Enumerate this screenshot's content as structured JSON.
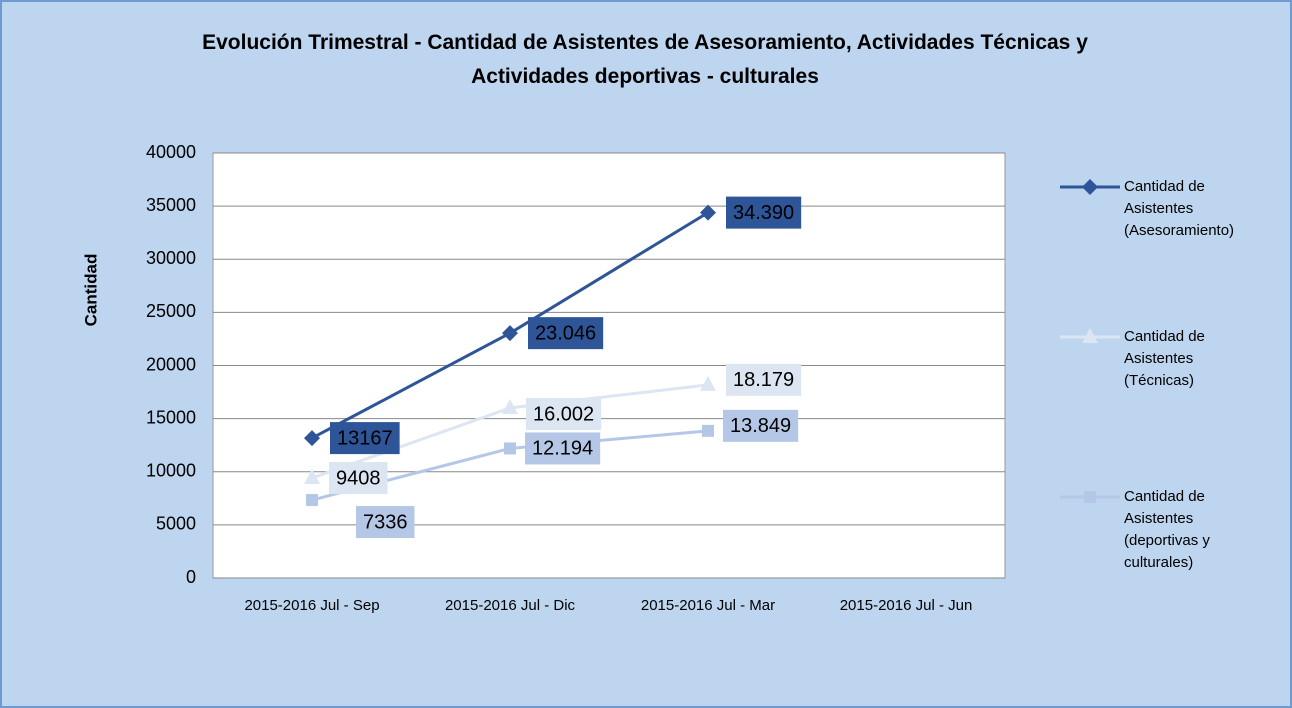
{
  "chart_data": {
    "type": "line",
    "title": "Evolución Trimestral -  Cantidad de Asistentes de Asesoramiento, Actividades Técnicas y Actividades deportivas - culturales",
    "y_label": "Cantidad",
    "categories": [
      "2015-2016 Jul - Sep",
      "2015-2016 Jul - Dic",
      "2015-2016 Jul - Mar",
      "2015-2016 Jul - Jun"
    ],
    "series": [
      {
        "name": "Cantidad de Asistentes (Asesoramiento)",
        "color": "#2e5597",
        "marker": "diamond",
        "values": [
          13167,
          23046,
          34390,
          null
        ],
        "value_labels": [
          "13167",
          "23.046",
          "34.390",
          null
        ]
      },
      {
        "name": "Cantidad de Asistentes (Técnicas)",
        "color": "#dce6f2",
        "marker": "triangle",
        "values": [
          9408,
          16002,
          18179,
          null
        ],
        "value_labels": [
          "9408",
          "16.002",
          "18.179",
          null
        ]
      },
      {
        "name": "Cantidad de Asistentes (deportivas y culturales)",
        "color": "#b4c7e7",
        "marker": "square",
        "values": [
          7336,
          12194,
          13849,
          null
        ],
        "value_labels": [
          "7336",
          "12.194",
          "13.849",
          null
        ]
      }
    ],
    "ylim": [
      0,
      40000
    ],
    "yticks": [
      0,
      5000,
      10000,
      15000,
      20000,
      25000,
      30000,
      35000,
      40000
    ],
    "grid": true,
    "legend": "right"
  }
}
